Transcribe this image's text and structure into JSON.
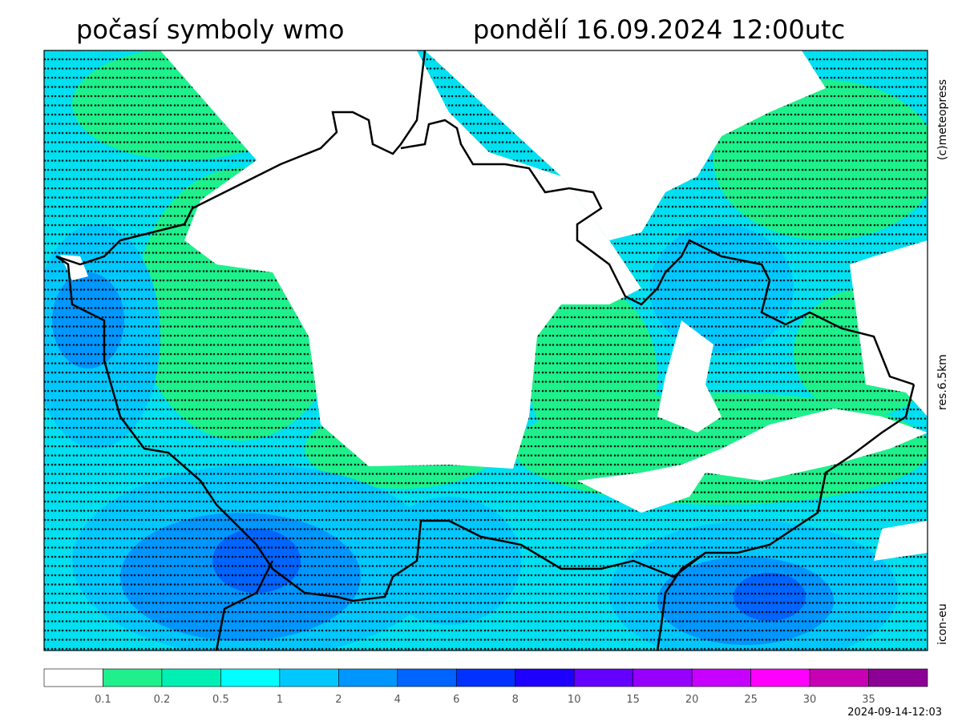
{
  "header": {
    "title_left": "počasí symboly wmo",
    "title_right": "pondělí 16.09.2024 12:00utc"
  },
  "side_labels": {
    "copyright": "(c)meteopress",
    "resolution": "res.6.5km",
    "model": "icon-eu"
  },
  "colorbar": {
    "colors": [
      "#ffffff",
      "#1ef08c",
      "#00f0b4",
      "#00ffff",
      "#00c8ff",
      "#0096ff",
      "#0064ff",
      "#0032ff",
      "#1e00ff",
      "#6400ff",
      "#9600ff",
      "#c800ff",
      "#ff00ff",
      "#c800b4",
      "#8c0096"
    ],
    "ticks": [
      0.1,
      0.2,
      0.5,
      1,
      2,
      4,
      6,
      8,
      10,
      15,
      20,
      25,
      30,
      35
    ]
  },
  "timestamp": "2024-09-14-12:03"
}
